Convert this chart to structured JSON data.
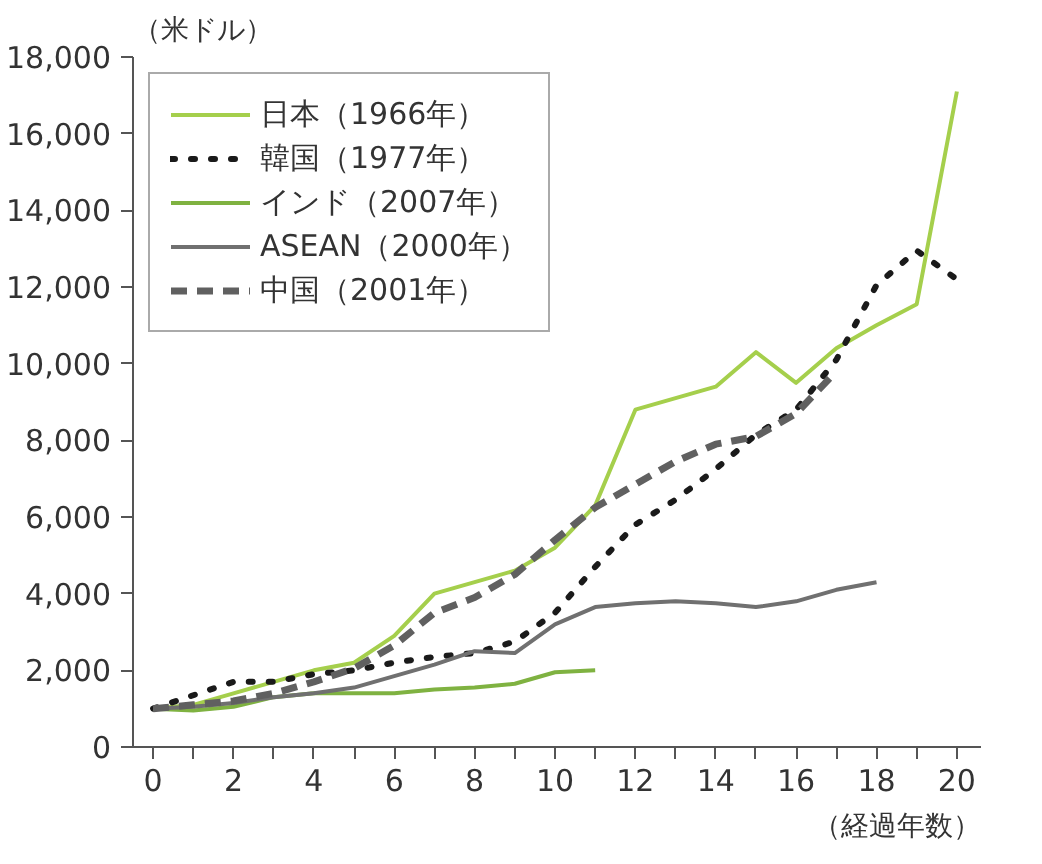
{
  "chart_data": {
    "type": "line",
    "ylabel": "（米ドル）",
    "xlabel": "（経過年数）",
    "x": [
      0,
      1,
      2,
      3,
      4,
      5,
      6,
      7,
      8,
      9,
      10,
      11,
      12,
      13,
      14,
      15,
      16,
      17,
      18,
      19,
      20
    ],
    "xlim": [
      -0.5,
      20.6
    ],
    "ylim": [
      0,
      18000
    ],
    "xticks": [
      0,
      {
        "value": 1,
        "label": null
      },
      2,
      {
        "value": 3,
        "label": null
      },
      4,
      {
        "value": 5,
        "label": null
      },
      6,
      {
        "value": 7,
        "label": null
      },
      8,
      {
        "value": 9,
        "label": null
      },
      10,
      {
        "value": 11,
        "label": null
      },
      12,
      {
        "value": 13,
        "label": null
      },
      14,
      {
        "value": 15,
        "label": null
      },
      16,
      {
        "value": 17,
        "label": null
      },
      18,
      {
        "value": 19,
        "label": null
      },
      20
    ],
    "yticks": [
      {
        "value": 0,
        "label": "0"
      },
      {
        "value": 2000,
        "label": "2,000"
      },
      {
        "value": 4000,
        "label": "4,000"
      },
      {
        "value": 6000,
        "label": "6,000"
      },
      {
        "value": 8000,
        "label": "8,000"
      },
      {
        "value": 10000,
        "label": "10,000"
      },
      {
        "value": 12000,
        "label": "12,000"
      },
      {
        "value": 14000,
        "label": "14,000"
      },
      {
        "value": 16000,
        "label": "16,000"
      },
      {
        "value": 18000,
        "label": "18,000"
      }
    ],
    "grid": false,
    "legend": "top left",
    "marker": "none",
    "series": [
      {
        "name": "日本（1966年）",
        "color": "#a5cf4c",
        "line_style": "solid",
        "values": [
          1000,
          1100,
          1400,
          1700,
          2000,
          2200,
          2900,
          4000,
          4300,
          4600,
          5200,
          6300,
          8800,
          9100,
          9400,
          10300,
          9500,
          10400,
          11000,
          11550,
          17100
        ]
      },
      {
        "name": "韓国（1977年）",
        "color": "#1a1a1a",
        "line_style": "dotted",
        "values": [
          1000,
          1350,
          1700,
          1700,
          1900,
          2000,
          2200,
          2350,
          2450,
          2750,
          3500,
          4700,
          5800,
          6450,
          7250,
          8150,
          8800,
          10100,
          12050,
          12950,
          12200
        ]
      },
      {
        "name": "インド（2007年）",
        "color": "#7fb241",
        "line_style": "solid",
        "values": [
          1000,
          950,
          1050,
          1300,
          1400,
          1400,
          1400,
          1500,
          1550,
          1650,
          1950,
          2000,
          null,
          null,
          null,
          null,
          null,
          null,
          null,
          null,
          null
        ]
      },
      {
        "name": "ASEAN（2000年）",
        "color": "#707070",
        "line_style": "solid",
        "values": [
          1000,
          1050,
          1150,
          1300,
          1400,
          1550,
          1850,
          2150,
          2500,
          2450,
          3200,
          3650,
          3750,
          3800,
          3750,
          3650,
          3800,
          4100,
          4300,
          null,
          null
        ]
      },
      {
        "name": "中国（2001年）",
        "color": "#606060",
        "line_style": "dashed",
        "values": [
          1000,
          1100,
          1200,
          1400,
          1700,
          2050,
          2650,
          3500,
          3900,
          4500,
          5400,
          6250,
          6850,
          7450,
          7900,
          8100,
          8700,
          9800,
          null,
          null,
          null
        ]
      }
    ]
  }
}
